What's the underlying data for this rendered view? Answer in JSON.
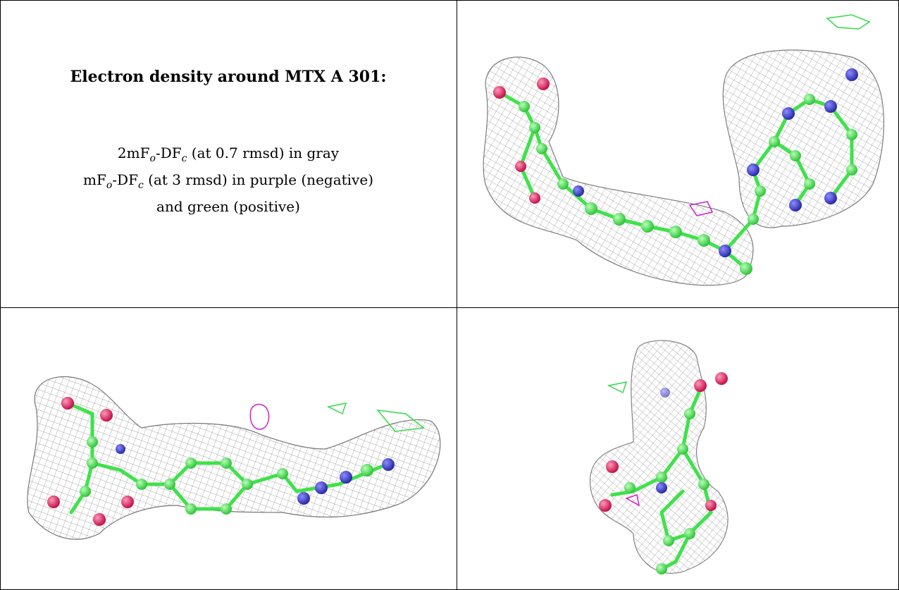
{
  "panel_text": {
    "title": "Electron density around MTX A 301:",
    "line1": {
      "prefix": "2mF",
      "s1": "o",
      "mid": "-DF",
      "s2": "c",
      "suffix": " (at 0.7 rmsd) in gray"
    },
    "line2": {
      "prefix": "mF",
      "s1": "o",
      "mid": "-DF",
      "s2": "c",
      "suffix": " (at 3 rmsd) in purple (negative)"
    },
    "line3": "and green (positive)"
  },
  "colors": {
    "mesh_gray": "#8a8a8a",
    "carbon_green": "#3fe24a",
    "nitrogen_blue": "#3a3ad0",
    "oxygen_red": "#e0205a",
    "positive_green": "#35d94a",
    "negative_purple": "#d020d0"
  },
  "views": [
    "view-top-right",
    "view-bottom-left",
    "view-bottom-right"
  ]
}
